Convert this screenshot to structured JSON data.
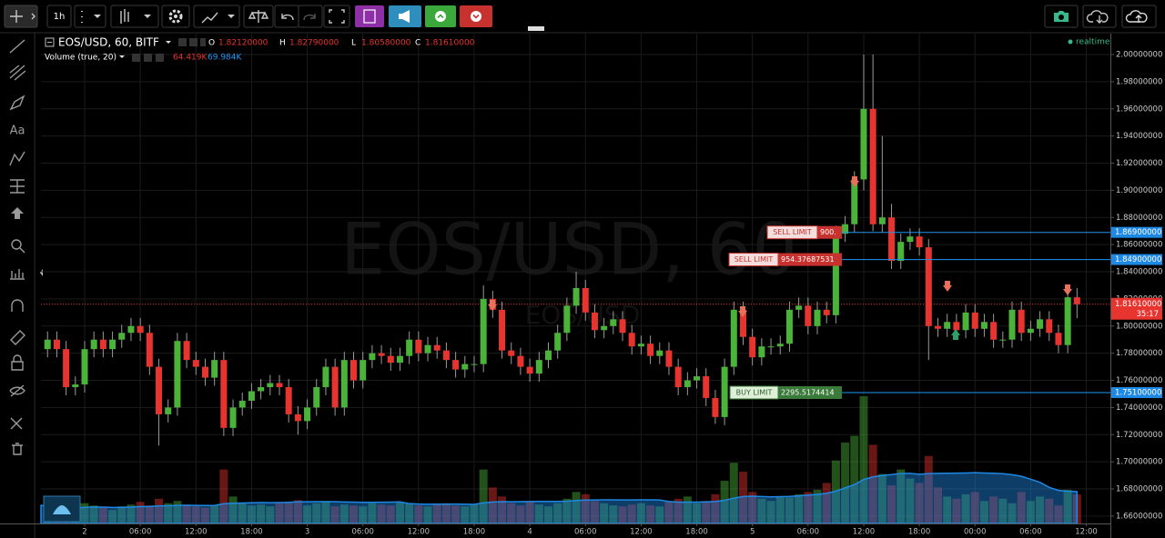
{
  "chart_data": {
    "type": "candlestick",
    "symbol": "EOS/USD, 60, BITF",
    "watermark": "EOS/USD, 60",
    "watermark_sub": "EOS/USD",
    "realtime": "realtime",
    "legend": [
      {
        "key": "O",
        "label": "1.82120000"
      },
      {
        "key": "H",
        "label": "1.82790000"
      },
      {
        "key": "L",
        "label": "1.80580000"
      },
      {
        "key": "C",
        "label": "1.81610000"
      }
    ],
    "volume_title": "Volume (true, 20)",
    "volume_last": "64.419K",
    "volume_ma": "69.984K",
    "up_color": "#4bb33a",
    "down_color": "#e8342f",
    "categories": [
      null,
      null,
      null,
      null,
      "2",
      null,
      null,
      null,
      null,
      null,
      "06:00",
      null,
      null,
      null,
      null,
      null,
      "12:00",
      null,
      null,
      null,
      null,
      null,
      "18:00",
      null,
      null,
      null,
      null,
      null,
      "3",
      null,
      null,
      null,
      null,
      null,
      "06:00",
      null,
      null,
      null,
      null,
      null,
      "12:00",
      null,
      null,
      null,
      null,
      null,
      "18:00",
      null,
      null,
      null,
      null,
      null,
      "4",
      null,
      null,
      null,
      null,
      null,
      "06:00",
      null,
      null,
      null,
      null,
      null,
      "12:00",
      null,
      null,
      null,
      null,
      null,
      "18:00",
      null,
      null,
      null,
      null,
      null,
      "5",
      null,
      null,
      null,
      null,
      null,
      "06:00",
      null,
      null,
      null,
      null,
      null,
      "12:00",
      null,
      null,
      null,
      null,
      null,
      "18:00",
      null,
      null,
      null,
      null,
      null,
      "00:00",
      null,
      null,
      null,
      null,
      null,
      "06:00",
      null,
      null,
      null,
      null,
      null,
      "12:00"
    ],
    "open": [
      1.783,
      1.79,
      1.783,
      1.755,
      1.757,
      1.783,
      1.79,
      1.783,
      1.79,
      1.795,
      1.8,
      1.795,
      1.77,
      1.735,
      1.74,
      1.789,
      1.775,
      1.77,
      1.762,
      1.775,
      1.725,
      1.74,
      1.745,
      1.752,
      1.755,
      1.758,
      1.755,
      1.735,
      1.73,
      1.74,
      1.755,
      1.77,
      1.74,
      1.775,
      1.76,
      1.775,
      1.78,
      1.778,
      1.773,
      1.778,
      1.79,
      1.78,
      1.786,
      1.782,
      1.775,
      1.768,
      1.772,
      1.772,
      1.82,
      1.812,
      1.782,
      1.778,
      1.77,
      1.765,
      1.775,
      1.782,
      1.795,
      1.815,
      1.828,
      1.81,
      1.797,
      1.8,
      1.805,
      1.795,
      1.785,
      1.787,
      1.778,
      1.782,
      1.77,
      1.755,
      1.76,
      1.763,
      1.747,
      1.733,
      1.77,
      1.812,
      1.792,
      1.777,
      1.785,
      1.785,
      1.787,
      1.812,
      1.815,
      1.8,
      1.812,
      1.808,
      1.868,
      1.875,
      1.908,
      1.96,
      1.875,
      1.88,
      1.848,
      1.862,
      1.866,
      1.858,
      1.8,
      1.798,
      1.803,
      1.797,
      1.81,
      1.798,
      1.803,
      1.79,
      1.79,
      1.812,
      1.795,
      1.798,
      1.805,
      1.795,
      1.786,
      1.8212,
      null
    ],
    "high": [
      1.796,
      1.796,
      1.789,
      1.763,
      1.789,
      1.796,
      1.796,
      1.796,
      1.801,
      1.806,
      1.806,
      1.801,
      1.776,
      1.746,
      1.795,
      1.795,
      1.781,
      1.776,
      1.781,
      1.781,
      1.746,
      1.751,
      1.758,
      1.761,
      1.764,
      1.764,
      1.761,
      1.741,
      1.746,
      1.761,
      1.776,
      1.776,
      1.781,
      1.781,
      1.781,
      1.786,
      1.786,
      1.784,
      1.784,
      1.796,
      1.796,
      1.792,
      1.792,
      1.788,
      1.781,
      1.778,
      1.778,
      1.83,
      1.826,
      1.818,
      1.788,
      1.784,
      1.776,
      1.781,
      1.788,
      1.801,
      1.821,
      1.84,
      1.834,
      1.816,
      1.806,
      1.811,
      1.811,
      1.801,
      1.793,
      1.793,
      1.788,
      1.788,
      1.776,
      1.766,
      1.769,
      1.769,
      1.753,
      1.776,
      1.818,
      1.818,
      1.798,
      1.791,
      1.791,
      1.793,
      1.818,
      1.821,
      1.821,
      1.818,
      1.818,
      1.874,
      1.881,
      1.914,
      2.0,
      2.0,
      1.94,
      1.89,
      1.868,
      1.872,
      1.872,
      1.864,
      1.806,
      1.809,
      1.809,
      1.816,
      1.816,
      1.809,
      1.809,
      1.796,
      1.818,
      1.818,
      1.804,
      1.811,
      1.811,
      1.801,
      1.827,
      1.8279,
      null
    ],
    "low": [
      1.777,
      1.777,
      1.749,
      1.749,
      1.751,
      1.777,
      1.777,
      1.777,
      1.784,
      1.789,
      1.789,
      1.764,
      1.712,
      1.729,
      1.734,
      1.769,
      1.764,
      1.756,
      1.756,
      1.719,
      1.719,
      1.734,
      1.739,
      1.746,
      1.749,
      1.749,
      1.729,
      1.72,
      1.724,
      1.734,
      1.749,
      1.734,
      1.734,
      1.754,
      1.754,
      1.769,
      1.772,
      1.767,
      1.767,
      1.772,
      1.774,
      1.774,
      1.776,
      1.769,
      1.762,
      1.762,
      1.766,
      1.766,
      1.806,
      1.776,
      1.772,
      1.764,
      1.759,
      1.759,
      1.769,
      1.776,
      1.789,
      1.809,
      1.804,
      1.791,
      1.791,
      1.794,
      1.789,
      1.779,
      1.779,
      1.772,
      1.772,
      1.764,
      1.749,
      1.749,
      1.754,
      1.741,
      1.728,
      1.727,
      1.764,
      1.786,
      1.771,
      1.771,
      1.779,
      1.779,
      1.781,
      1.806,
      1.794,
      1.794,
      1.802,
      1.802,
      1.862,
      1.869,
      1.9,
      1.87,
      1.869,
      1.842,
      1.842,
      1.856,
      1.852,
      1.775,
      1.792,
      1.792,
      1.791,
      1.791,
      1.792,
      1.792,
      1.784,
      1.784,
      1.784,
      1.789,
      1.789,
      1.792,
      1.789,
      1.78,
      1.78,
      1.8058,
      null
    ],
    "close": [
      1.79,
      1.783,
      1.755,
      1.757,
      1.783,
      1.79,
      1.783,
      1.79,
      1.795,
      1.8,
      1.795,
      1.77,
      1.735,
      1.74,
      1.789,
      1.775,
      1.77,
      1.762,
      1.775,
      1.725,
      1.74,
      1.745,
      1.752,
      1.755,
      1.758,
      1.755,
      1.735,
      1.73,
      1.74,
      1.755,
      1.77,
      1.74,
      1.775,
      1.76,
      1.775,
      1.78,
      1.778,
      1.773,
      1.778,
      1.79,
      1.78,
      1.786,
      1.782,
      1.775,
      1.768,
      1.772,
      1.772,
      1.82,
      1.812,
      1.782,
      1.778,
      1.77,
      1.765,
      1.775,
      1.782,
      1.795,
      1.815,
      1.828,
      1.81,
      1.797,
      1.8,
      1.805,
      1.795,
      1.785,
      1.787,
      1.778,
      1.782,
      1.77,
      1.755,
      1.76,
      1.763,
      1.747,
      1.733,
      1.77,
      1.812,
      1.792,
      1.777,
      1.785,
      1.785,
      1.787,
      1.812,
      1.815,
      1.8,
      1.812,
      1.808,
      1.868,
      1.875,
      1.908,
      1.96,
      1.875,
      1.88,
      1.848,
      1.862,
      1.866,
      1.858,
      1.8,
      1.798,
      1.803,
      1.797,
      1.81,
      1.798,
      1.803,
      1.79,
      1.79,
      1.812,
      1.795,
      1.798,
      1.805,
      1.795,
      1.786,
      1.8212,
      1.8161,
      null
    ],
    "volume": [
      40,
      35,
      30,
      30,
      45,
      40,
      35,
      30,
      38,
      42,
      48,
      40,
      55,
      45,
      50,
      42,
      38,
      35,
      40,
      120,
      60,
      45,
      40,
      42,
      38,
      45,
      48,
      52,
      40,
      45,
      50,
      38,
      42,
      40,
      38,
      45,
      42,
      40,
      48,
      44,
      40,
      38,
      42,
      45,
      40,
      38,
      42,
      120,
      80,
      60,
      45,
      40,
      50,
      42,
      38,
      45,
      55,
      70,
      65,
      50,
      45,
      40,
      38,
      42,
      45,
      40,
      38,
      48,
      55,
      60,
      45,
      50,
      65,
      95,
      135,
      115,
      70,
      55,
      50,
      60,
      58,
      65,
      70,
      75,
      90,
      140,
      180,
      195,
      283,
      175,
      110,
      85,
      120,
      100,
      90,
      150,
      80,
      60,
      55,
      65,
      70,
      50,
      60,
      55,
      45,
      70,
      50,
      60,
      55,
      40,
      75,
      64.419,
      null
    ],
    "ylim": [
      1.6546,
      2.0154
    ],
    "yticks": [
      {
        "value": 1.66,
        "label": "1.66000000"
      },
      {
        "value": 1.68,
        "label": "1.68000000"
      },
      {
        "value": 1.7,
        "label": "1.70000000"
      },
      {
        "value": 1.72,
        "label": "1.72000000"
      },
      {
        "value": 1.74,
        "label": "1.74000000"
      },
      {
        "value": 1.76,
        "label": "1.76000000"
      },
      {
        "value": 1.78,
        "label": "1.78000000"
      },
      {
        "value": 1.8,
        "label": "1.80000000"
      },
      {
        "value": 1.82,
        "label": "1.82000000"
      },
      {
        "value": 1.84,
        "label": "1.84000000"
      },
      {
        "value": 1.86,
        "label": "1.86000000"
      },
      {
        "value": 1.88,
        "label": "1.88000000"
      },
      {
        "value": 1.9,
        "label": "1.90000000"
      },
      {
        "value": 1.92,
        "label": "1.92000000"
      },
      {
        "value": 1.94,
        "label": "1.94000000"
      },
      {
        "value": 1.96,
        "label": "1.96000000"
      },
      {
        "value": 1.98,
        "label": "1.98000000"
      },
      {
        "value": 2.0,
        "label": "2.00000000"
      }
    ],
    "grid": true,
    "orders": [
      {
        "side": "SELL LIMIT",
        "qty": "900.",
        "price": 1.869,
        "price_label": "1.86900000"
      },
      {
        "side": "SELL LIMIT",
        "qty": "954.37687531",
        "price": 1.849,
        "price_label": "1.84900000"
      },
      {
        "side": "BUY LIMIT",
        "qty": "2295.5174414",
        "price": 1.751,
        "price_label": "1.75100000"
      }
    ],
    "last_price": {
      "value": 1.8161,
      "label": "1.81610000",
      "countdown": "35:17"
    }
  },
  "toolbar": {
    "interval": "1h",
    "text_tool": "Aa"
  }
}
